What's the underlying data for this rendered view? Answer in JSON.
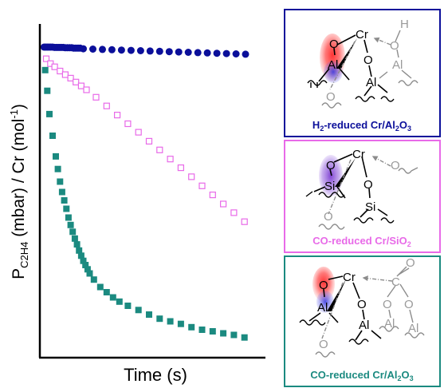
{
  "chart_data": {
    "type": "scatter",
    "title": "",
    "xlabel": "Time (s)",
    "ylabel": {
      "prefix": "P",
      "subscript": "C2H4",
      "middle": " (mbar) / Cr (mol",
      "superscript": "-1",
      "suffix": ")"
    },
    "xlim": [
      0,
      100
    ],
    "ylim": [
      0,
      100
    ],
    "grid": false,
    "series": [
      {
        "key": "h2_cr_al2o3",
        "color": "#0b0f9a",
        "marker": "circle",
        "filled": true,
        "x": [
          0.5,
          1.2,
          2.0,
          2.8,
          3.6,
          4.5,
          5.5,
          6.5,
          7.5,
          8.5,
          9.5,
          10.5,
          11.5,
          12.5,
          13.5,
          14.5,
          15.5,
          16.5,
          17.5,
          19.0,
          23.5,
          28.0,
          32.5,
          37.0,
          41.5,
          46.0,
          50.5,
          55.0,
          59.5,
          64.0,
          68.5,
          73.0,
          77.5,
          82.0,
          86.5,
          91.0,
          95.5
        ],
        "y": [
          95.3,
          95.3,
          95.3,
          95.3,
          95.3,
          95.3,
          95.2,
          95.2,
          95.2,
          95.2,
          95.2,
          95.1,
          95.1,
          95.1,
          95.1,
          95.0,
          95.0,
          95.0,
          95.0,
          94.8,
          94.7,
          94.6,
          94.5,
          94.4,
          94.3,
          94.2,
          94.1,
          94.0,
          93.9,
          93.8,
          93.7,
          93.6,
          93.5,
          93.4,
          93.3,
          93.2,
          93.1
        ]
      },
      {
        "key": "co_cr_sio2",
        "color": "#e86ae8",
        "marker": "square",
        "filled": false,
        "x": [
          1.5,
          3.5,
          5.5,
          8.0,
          10.5,
          13.0,
          15.5,
          18.0,
          20.5,
          25.0,
          30.0,
          35.0,
          40.0,
          45.0,
          50.0,
          55.0,
          60.0,
          65.0,
          70.0,
          75.0,
          80.0,
          85.0,
          90.0,
          95.0
        ],
        "y": [
          91.7,
          90.2,
          89.2,
          87.9,
          86.8,
          85.7,
          84.5,
          83.3,
          82.1,
          79.8,
          77.1,
          74.3,
          71.6,
          69.0,
          66.2,
          63.5,
          60.7,
          58.0,
          55.2,
          52.4,
          49.6,
          46.8,
          44.1,
          41.3
        ]
      },
      {
        "key": "co_cr_al2o3",
        "color": "#1b8a80",
        "marker": "square",
        "filled": true,
        "x": [
          1.0,
          2.0,
          3.0,
          4.5,
          6.0,
          7.0,
          8.0,
          9.0,
          10.0,
          11.0,
          12.0,
          13.0,
          14.0,
          15.0,
          16.0,
          17.0,
          18.0,
          19.0,
          20.0,
          21.0,
          22.0,
          24.0,
          27.0,
          30.0,
          33.0,
          36.0,
          40.0,
          45.0,
          50.0,
          55.0,
          60.0,
          65.0,
          70.0,
          75.0,
          80.0,
          85.0,
          90.0,
          95.0
        ],
        "y": [
          88.2,
          81.8,
          74.6,
          67.9,
          61.5,
          57.6,
          53.7,
          50.5,
          47.9,
          45.3,
          42.6,
          40.3,
          38.2,
          36.1,
          34.3,
          32.4,
          30.8,
          29.2,
          27.9,
          26.6,
          25.3,
          23.4,
          21.1,
          19.5,
          17.9,
          16.6,
          15.3,
          14.0,
          12.6,
          11.3,
          10.5,
          9.7,
          8.7,
          7.9,
          7.4,
          6.8,
          6.3,
          5.5
        ]
      }
    ]
  },
  "panels": [
    {
      "key": "h2_cr_al2o3",
      "border_color": "#0b0f9a",
      "label_color": "#0b0f9a",
      "label_parts": [
        {
          "t": "H",
          "s": "n"
        },
        {
          "t": "2",
          "s": "sub"
        },
        {
          "t": "-reduced Cr/Al",
          "s": "n"
        },
        {
          "t": "2",
          "s": "sub"
        },
        {
          "t": "O",
          "s": "n"
        },
        {
          "t": "3",
          "s": "sub"
        }
      ],
      "atoms": {
        "cr": "Cr",
        "o1": "O",
        "o2": "O",
        "o3": "O",
        "al1": "Al",
        "al2": "Al",
        "al3": "Al",
        "o4": "O",
        "h": "H"
      },
      "glow_colors": [
        "#ff1a1a",
        "#3a3ae0"
      ]
    },
    {
      "key": "co_cr_sio2",
      "border_color": "#e86ae8",
      "label_color": "#e86ae8",
      "label_parts": [
        {
          "t": "CO-reduced Cr/SiO",
          "s": "n"
        },
        {
          "t": "2",
          "s": "sub"
        }
      ],
      "atoms": {
        "cr": "Cr",
        "o1": "O",
        "o2": "O",
        "o3": "O",
        "si1": "Si",
        "si2": "Si",
        "o4": "O"
      },
      "glow_colors": [
        "#8a4ad8"
      ]
    },
    {
      "key": "co_cr_al2o3",
      "border_color": "#1b8a80",
      "label_color": "#1b8a80",
      "label_parts": [
        {
          "t": "CO-reduced Cr/Al",
          "s": "n"
        },
        {
          "t": "2",
          "s": "sub"
        },
        {
          "t": "O",
          "s": "n"
        },
        {
          "t": "3",
          "s": "sub"
        }
      ],
      "atoms": {
        "cr": "Cr",
        "o1": "O",
        "o2": "O",
        "o3": "O",
        "o4": "O",
        "o5": "O",
        "al1": "Al",
        "al2": "Al",
        "al3": "Al",
        "al4": "Al",
        "c": "C",
        "o6": "O"
      },
      "glow_colors": [
        "#ff1a1a",
        "#3a3ae0"
      ]
    }
  ]
}
